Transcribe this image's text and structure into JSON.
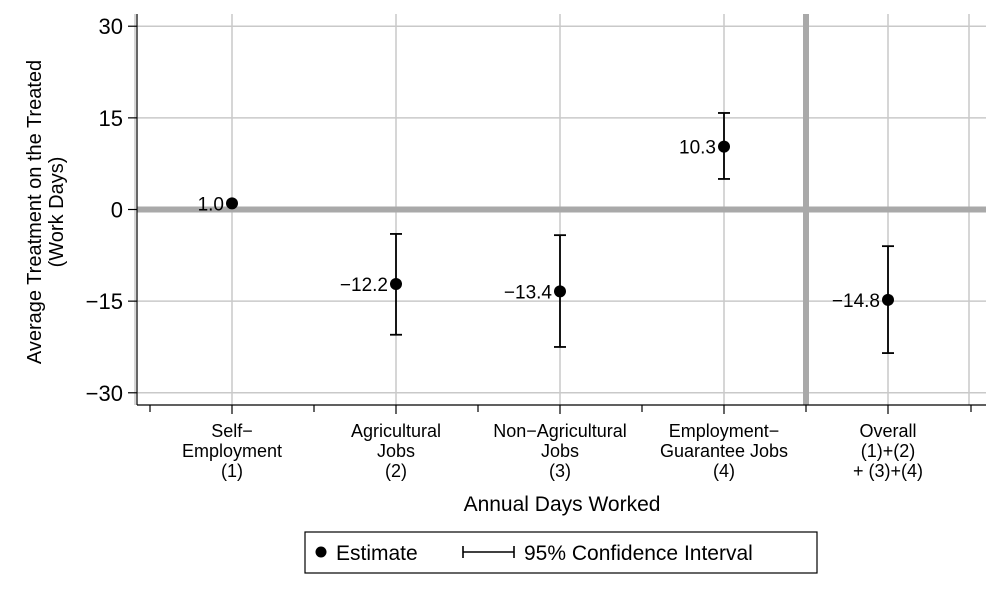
{
  "chart_data": {
    "type": "scatter",
    "title": "",
    "xlabel": "Annual Days Worked",
    "ylabel": [
      "Average Treatment on the Treated",
      "(Work Days)"
    ],
    "ylim": [
      -32,
      32
    ],
    "yticks": [
      30,
      15,
      0,
      -15,
      -30
    ],
    "ytick_labels": [
      "30",
      "15",
      "0",
      "−15",
      "−30"
    ],
    "grid": true,
    "reference_line_y": 0,
    "separator_after_category": 4,
    "categories": [
      [
        "Self−",
        "Employment",
        "(1)"
      ],
      [
        "Agricultural",
        "Jobs",
        "(2)"
      ],
      [
        "Non−Agricultural",
        "Jobs",
        "(3)"
      ],
      [
        "Employment−",
        "Guarantee Jobs",
        "(4)"
      ],
      [
        "Overall",
        "(1)+(2)",
        "+ (3)+(4)"
      ]
    ],
    "series": [
      {
        "name": "Estimate",
        "values": [
          1.0,
          -12.2,
          -13.4,
          10.3,
          -14.8
        ],
        "value_labels": [
          "1.0",
          "−12.2",
          "−13.4",
          "10.3",
          "−14.8"
        ],
        "ci_low": [
          null,
          -20.5,
          -22.5,
          5.0,
          -23.5
        ],
        "ci_high": [
          null,
          -4.0,
          -4.2,
          15.8,
          -6.0
        ]
      }
    ],
    "legend": {
      "position": "bottom",
      "items": [
        {
          "marker": "dot",
          "label": "Estimate"
        },
        {
          "marker": "ci",
          "label": "95% Confidence Interval"
        }
      ]
    },
    "colors": {
      "marker": "#000000",
      "grid": "#c9c9c9",
      "zero_line": "#a9a9a9",
      "separator": "#a9a9a9"
    }
  }
}
